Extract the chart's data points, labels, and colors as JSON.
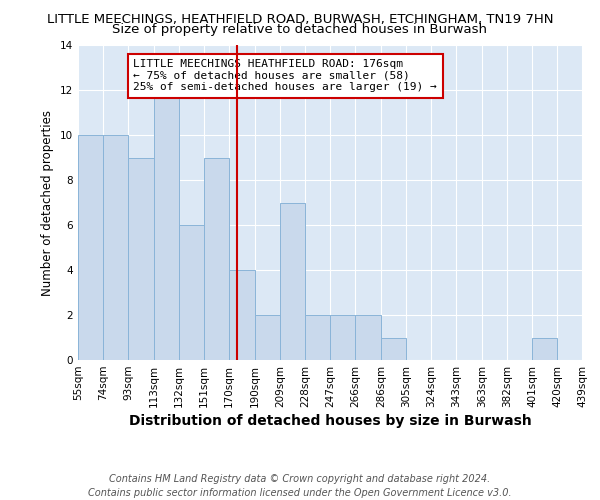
{
  "title": "LITTLE MEECHINGS, HEATHFIELD ROAD, BURWASH, ETCHINGHAM, TN19 7HN",
  "subtitle": "Size of property relative to detached houses in Burwash",
  "xlabel": "Distribution of detached houses by size in Burwash",
  "ylabel": "Number of detached properties",
  "bin_edges": [
    55,
    74,
    93,
    113,
    132,
    151,
    170,
    190,
    209,
    228,
    247,
    266,
    286,
    305,
    324,
    343,
    363,
    382,
    401,
    420,
    439
  ],
  "bin_labels": [
    "55sqm",
    "74sqm",
    "93sqm",
    "113sqm",
    "132sqm",
    "151sqm",
    "170sqm",
    "190sqm",
    "209sqm",
    "228sqm",
    "247sqm",
    "266sqm",
    "286sqm",
    "305sqm",
    "324sqm",
    "343sqm",
    "363sqm",
    "382sqm",
    "401sqm",
    "420sqm",
    "439sqm"
  ],
  "counts": [
    10,
    10,
    9,
    12,
    6,
    9,
    4,
    2,
    7,
    2,
    2,
    2,
    1,
    0,
    0,
    0,
    0,
    0,
    1,
    0,
    0
  ],
  "bar_color": "#c9d9ec",
  "bar_edge_color": "#8ab4d8",
  "vline_x": 176,
  "vline_color": "#cc0000",
  "annotation_text": "LITTLE MEECHINGS HEATHFIELD ROAD: 176sqm\n← 75% of detached houses are smaller (58)\n25% of semi-detached houses are larger (19) →",
  "annotation_box_color": "white",
  "annotation_box_edge_color": "#cc0000",
  "ylim": [
    0,
    14
  ],
  "yticks": [
    0,
    2,
    4,
    6,
    8,
    10,
    12,
    14
  ],
  "plot_bg_color": "#dce8f5",
  "fig_bg_color": "#ffffff",
  "footer": "Contains HM Land Registry data © Crown copyright and database right 2024.\nContains public sector information licensed under the Open Government Licence v3.0.",
  "title_fontsize": 9.5,
  "subtitle_fontsize": 9.5,
  "xlabel_fontsize": 10,
  "ylabel_fontsize": 8.5,
  "tick_fontsize": 7.5,
  "footer_fontsize": 7.0,
  "annot_fontsize": 8.0
}
